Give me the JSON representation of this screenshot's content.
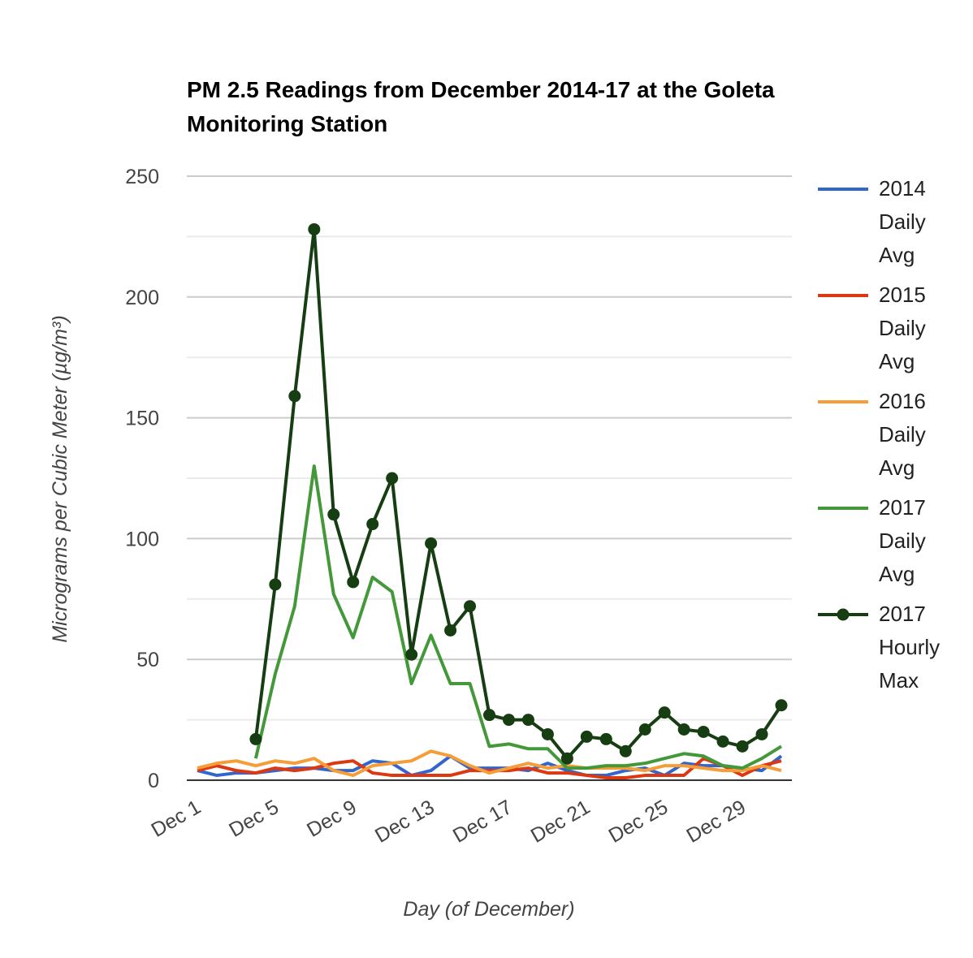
{
  "chart_data": {
    "type": "line",
    "title": "PM 2.5 Readings from December 2014-17 at the Goleta Monitoring Station",
    "x_label": "Day (of December)",
    "y_label": "Micrograms per Cubic Meter (µg/m³)",
    "categories": [
      "Dec 1",
      null,
      null,
      null,
      "Dec 5",
      null,
      null,
      null,
      "Dec 9",
      null,
      null,
      null,
      "Dec 13",
      null,
      null,
      null,
      "Dec 17",
      null,
      null,
      null,
      "Dec 21",
      null,
      null,
      null,
      "Dec 25",
      null,
      null,
      null,
      "Dec 29",
      null,
      null
    ],
    "ylim": [
      0,
      250
    ],
    "yticks": [
      0,
      50,
      100,
      150,
      200,
      250
    ],
    "minor_yticks": [
      25,
      75,
      125,
      175,
      225
    ],
    "grid": true,
    "legend": "right",
    "series": [
      {
        "name": "2014 Daily Avg",
        "color": "#3366cc",
        "values": [
          4,
          2,
          3,
          3,
          4,
          5,
          5,
          4,
          4,
          8,
          7,
          2,
          4,
          10,
          5,
          5,
          5,
          4,
          7,
          4,
          2,
          2,
          4,
          5,
          2,
          7,
          6,
          6,
          5,
          4,
          10
        ]
      },
      {
        "name": "2015 Daily Avg",
        "color": "#dc3912",
        "values": [
          4,
          6,
          4,
          3,
          5,
          4,
          5,
          7,
          8,
          3,
          2,
          2,
          2,
          2,
          4,
          4,
          4,
          5,
          3,
          3,
          2,
          1,
          1,
          2,
          2,
          2,
          9,
          6,
          2,
          6,
          8
        ]
      },
      {
        "name": "2016 Daily Avg",
        "color": "#f59d38",
        "values": [
          5,
          7,
          8,
          6,
          8,
          7,
          9,
          4,
          2,
          6,
          7,
          8,
          12,
          10,
          6,
          3,
          5,
          7,
          5,
          6,
          5,
          5,
          5,
          4,
          6,
          6,
          5,
          4,
          4,
          6,
          4
        ]
      },
      {
        "name": "2017 Daily Avg",
        "color": "#43993a",
        "values": [
          null,
          null,
          null,
          9,
          44,
          72,
          130,
          77,
          59,
          84,
          78,
          40,
          60,
          40,
          40,
          14,
          15,
          13,
          13,
          5,
          5,
          6,
          6,
          7,
          9,
          11,
          10,
          6,
          5,
          9,
          14
        ]
      },
      {
        "name": "2017 Hourly Max",
        "color": "#173d12",
        "marker": true,
        "values": [
          null,
          null,
          null,
          17,
          81,
          159,
          228,
          110,
          82,
          106,
          125,
          52,
          98,
          62,
          72,
          27,
          25,
          25,
          19,
          9,
          18,
          17,
          12,
          21,
          28,
          21,
          20,
          16,
          14,
          19,
          31
        ]
      }
    ]
  }
}
